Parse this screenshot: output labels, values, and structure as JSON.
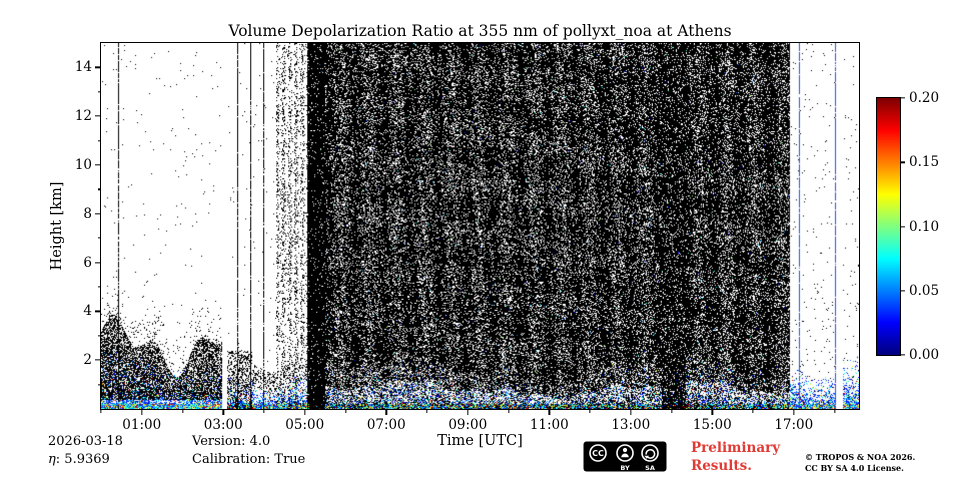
{
  "title": "Volume Depolarization Ratio at 355 nm of pollyxt_noa at Athens",
  "footer": {
    "date": "2026-03-18",
    "eta_symbol": "η",
    "eta_value": ": 5.9369",
    "version": "Version: 4.0",
    "calibration": "Calibration: True",
    "preliminary_line1": "Preliminary",
    "preliminary_line2": "Results.",
    "preliminary_color": "#e03a34",
    "copyright_line1": "© TROPOS & NOA 2026.",
    "copyright_line2": "CC BY SA 4.0 License.",
    "cc_badge": {
      "cc": "CC",
      "by": "BY",
      "sa": "SA"
    }
  },
  "chart_data": {
    "type": "heatmap",
    "title": "Volume Depolarization Ratio at 355 nm of pollyxt_noa at Athens",
    "xlabel": "Time [UTC]",
    "ylabel": "Height [km]",
    "x_axis": {
      "unit": "UTC time",
      "range_hours": [
        0,
        18.6
      ],
      "major_ticks": [
        {
          "hour": 1,
          "label": "01:00"
        },
        {
          "hour": 3,
          "label": "03:00"
        },
        {
          "hour": 5,
          "label": "05:00"
        },
        {
          "hour": 7,
          "label": "07:00"
        },
        {
          "hour": 9,
          "label": "09:00"
        },
        {
          "hour": 11,
          "label": "11:00"
        },
        {
          "hour": 13,
          "label": "13:00"
        },
        {
          "hour": 15,
          "label": "15:00"
        },
        {
          "hour": 17,
          "label": "17:00"
        }
      ],
      "minor_ticks_hours": [
        0,
        2,
        4,
        6,
        8,
        10,
        12,
        14,
        16,
        18
      ]
    },
    "y_axis": {
      "unit": "km",
      "range_km": [
        0,
        15
      ],
      "major_ticks": [
        {
          "km": 2,
          "label": "2"
        },
        {
          "km": 4,
          "label": "4"
        },
        {
          "km": 6,
          "label": "6"
        },
        {
          "km": 8,
          "label": "8"
        },
        {
          "km": 10,
          "label": "10"
        },
        {
          "km": 12,
          "label": "12"
        },
        {
          "km": 14,
          "label": "14"
        }
      ],
      "minor_ticks_km": [
        1,
        3,
        5,
        7,
        9,
        11,
        13
      ]
    },
    "colorbar": {
      "min": 0.0,
      "max": 0.2,
      "colormap": "jet",
      "ticks": [
        {
          "value": 0.0,
          "label": "0.00"
        },
        {
          "value": 0.05,
          "label": "0.05"
        },
        {
          "value": 0.1,
          "label": "0.10"
        },
        {
          "value": 0.15,
          "label": "0.15"
        },
        {
          "value": 0.2,
          "label": "0.20"
        }
      ]
    },
    "description": "Lidar volume depolarization ratio time-height quicklook: dense black noise 05:00-16:55 UTC over all heights, sparse noise before 05:00 and after 17:00, low aerosol layer below ~2 km in jet colors across full time range, dense black boundary-layer blob 00:00-03:00 below ~3 km, data gaps near 03:00 and 18:05, thin black profile lines near 00:25 and 03:20-04:00, blue profile lines near 17:10 and 18:00.",
    "render": {
      "seed": 1337,
      "sparse_density": 0.006,
      "dense_region": {
        "hour_start": 5.05,
        "hour_end": 16.9,
        "density": 0.8
      },
      "dense_band": {
        "hour_start": 5.05,
        "hour_end": 5.5,
        "density": 0.95
      },
      "black_column": {
        "hour_start": 13.75,
        "hour_end": 14.35,
        "density": 0.85
      },
      "left_blob": {
        "hour_end": 2.98,
        "base_top_km": 2.6,
        "density": 0.62
      },
      "post_gap_blob": {
        "hour_start": 3.1,
        "hour_end": 3.7,
        "top_km": 2.4,
        "density": 0.35
      },
      "aerosol": {
        "mean_top_km": 1.6
      },
      "vertical_lines": [
        {
          "hour": 0.42,
          "color": "#000000"
        },
        {
          "hour": 3.33,
          "color": "#000000"
        },
        {
          "hour": 3.65,
          "color": "#000000"
        },
        {
          "hour": 3.97,
          "color": "#000000"
        },
        {
          "hour": 17.13,
          "color": "#2e4fd8"
        },
        {
          "hour": 18.0,
          "color": "#2e4fd8"
        }
      ],
      "gaps": [
        [
          2.98,
          3.1
        ],
        [
          18.04,
          18.2
        ]
      ]
    }
  }
}
